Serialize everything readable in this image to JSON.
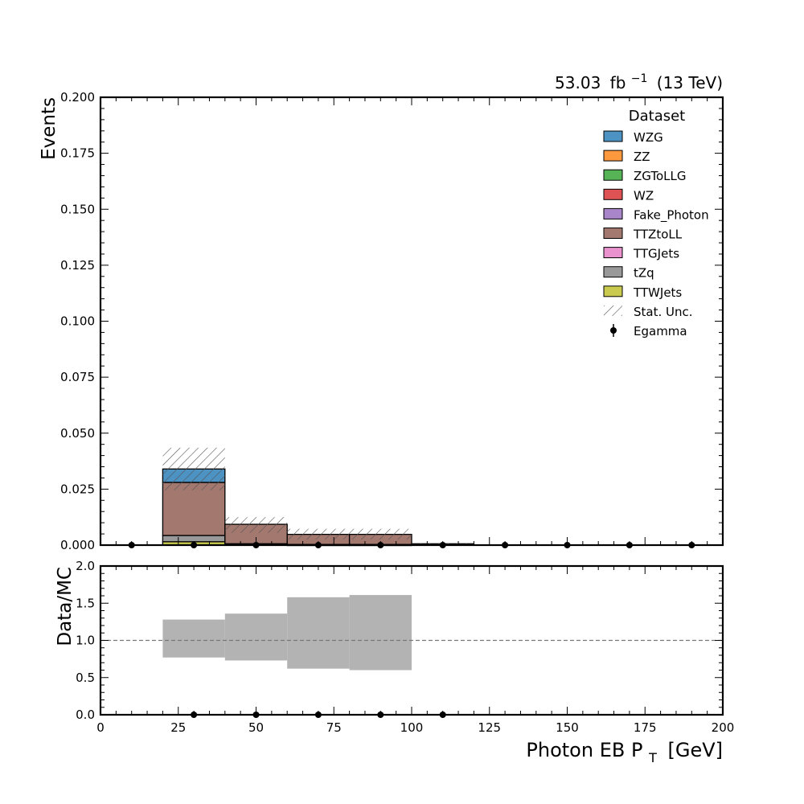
{
  "lumi_label": {
    "value": "53.03",
    "unit": "fb",
    "exponent": "−1",
    "energy": "(13 TeV)"
  },
  "chart_data": [
    {
      "type": "bar",
      "stacked": true,
      "ylabel": "Events",
      "xlim": [
        0,
        200
      ],
      "ylim": [
        0,
        0.2
      ],
      "yticks": [
        "0.000",
        "0.025",
        "0.050",
        "0.075",
        "0.100",
        "0.125",
        "0.150",
        "0.175",
        "0.200"
      ],
      "ytick_values": [
        0,
        0.025,
        0.05,
        0.075,
        0.1,
        0.125,
        0.15,
        0.175,
        0.2
      ],
      "bin_edges": [
        0,
        20,
        40,
        60,
        80,
        100,
        120,
        140,
        160,
        180,
        200
      ],
      "legend_title": "Dataset",
      "legend_position": "top-right",
      "series": [
        {
          "name": "TTWJets",
          "color": "#bcbd22",
          "values": [
            0,
            0.0015,
            0.0002,
            0.0001,
            0.0001,
            0,
            0,
            0,
            0,
            0
          ]
        },
        {
          "name": "tZq",
          "color": "#7f7f7f",
          "values": [
            0,
            0.0028,
            0.0004,
            0.0002,
            0.0002,
            0,
            0,
            0,
            0,
            0
          ]
        },
        {
          "name": "TTGJets",
          "color": "#e377c2",
          "values": [
            0,
            0,
            0,
            0,
            0,
            0,
            0,
            0,
            0,
            0
          ]
        },
        {
          "name": "TTZtoLL",
          "color": "#8c564b",
          "values": [
            0,
            0.0237,
            0.0087,
            0.0045,
            0.0045,
            0.0006,
            0,
            0,
            0,
            0
          ]
        },
        {
          "name": "Fake_Photon",
          "color": "#9467bd",
          "values": [
            0,
            0,
            0,
            0,
            0,
            0,
            0,
            0,
            0,
            0
          ]
        },
        {
          "name": "WZ",
          "color": "#d62728",
          "values": [
            0,
            0,
            0,
            0,
            0,
            0,
            0,
            0,
            0,
            0
          ]
        },
        {
          "name": "ZGToLLG",
          "color": "#2ca02c",
          "values": [
            0,
            0,
            0,
            0,
            0,
            0,
            0,
            0,
            0,
            0
          ]
        },
        {
          "name": "ZZ",
          "color": "#ff7f0e",
          "values": [
            0,
            0,
            0,
            0,
            0,
            0,
            0,
            0,
            0,
            0
          ]
        },
        {
          "name": "WZG",
          "color": "#1f77b4",
          "values": [
            0,
            0.006,
            0,
            0,
            0,
            0,
            0,
            0,
            0,
            0
          ]
        }
      ],
      "legend_order": [
        "WZG",
        "ZZ",
        "ZGToLLG",
        "WZ",
        "Fake_Photon",
        "TTZtoLL",
        "TTGJets",
        "tZq",
        "TTWJets"
      ],
      "stat_unc": {
        "name": "Stat. Unc.",
        "up": [
          0,
          0.0435,
          0.0125,
          0.0073,
          0.0073,
          0.0009,
          0,
          0,
          0,
          0
        ],
        "down": [
          0,
          0.0245,
          0.0055,
          0.0025,
          0.0025,
          0.0003,
          0,
          0,
          0,
          0
        ]
      },
      "data": {
        "name": "Egamma",
        "x": [
          10,
          30,
          50,
          70,
          90,
          110,
          130,
          150,
          170,
          190
        ],
        "y": [
          0,
          0,
          0,
          0,
          0,
          0,
          0,
          0,
          0,
          0
        ]
      }
    },
    {
      "type": "bar",
      "ylabel": "Data/MC",
      "xlabel_main": "Photon EB P",
      "xlabel_sub": "T",
      "xlabel_unit": "[GeV]",
      "xlim": [
        0,
        200
      ],
      "ylim": [
        0,
        2
      ],
      "xticks": [
        "0",
        "25",
        "50",
        "75",
        "100",
        "125",
        "150",
        "175",
        "200"
      ],
      "xtick_values": [
        0,
        25,
        50,
        75,
        100,
        125,
        150,
        175,
        200
      ],
      "yticks": [
        "0.0",
        "0.5",
        "1.0",
        "1.5",
        "2.0"
      ],
      "ytick_values": [
        0,
        0.5,
        1.0,
        1.5,
        2.0
      ],
      "reference_line": 1.0,
      "unc_band": {
        "bins": [
          [
            20,
            40
          ],
          [
            40,
            60
          ],
          [
            60,
            80
          ],
          [
            80,
            100
          ]
        ],
        "low": [
          0.77,
          0.73,
          0.62,
          0.6
        ],
        "high": [
          1.28,
          1.36,
          1.58,
          1.61
        ]
      },
      "ratio_points": {
        "x": [
          30,
          50,
          70,
          90,
          110
        ],
        "y": [
          0,
          0,
          0,
          0,
          0
        ]
      }
    }
  ]
}
